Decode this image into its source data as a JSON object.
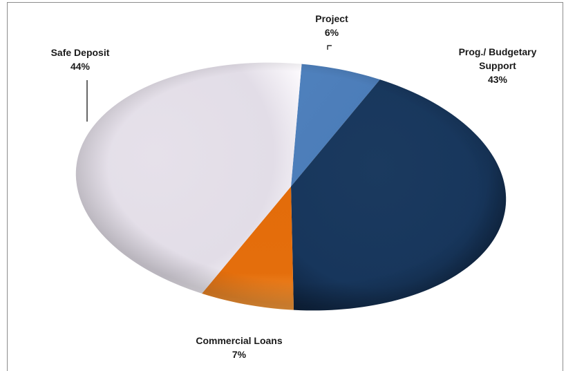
{
  "chart_data": {
    "type": "pie",
    "title": "",
    "slices": [
      {
        "label": "Project",
        "value": 6,
        "value_label": "6%",
        "color": "#4f81bd"
      },
      {
        "label": "Prog./ Budgetary Support",
        "label_lines": [
          "Prog./ Budgetary",
          "Support"
        ],
        "value": 43,
        "value_label": "43%",
        "color": "#17375e"
      },
      {
        "label": "Commercial Loans",
        "value": 7,
        "value_label": "7%",
        "color": "#e36c0a"
      },
      {
        "label": "Safe Deposit",
        "value": 44,
        "value_label": "44%",
        "color": "#e3dfe8"
      }
    ],
    "start_angle": "12 o'clock",
    "direction": "clockwise",
    "style": "3D oval pie with bevel shading",
    "legend": "none (labels on chart)"
  }
}
